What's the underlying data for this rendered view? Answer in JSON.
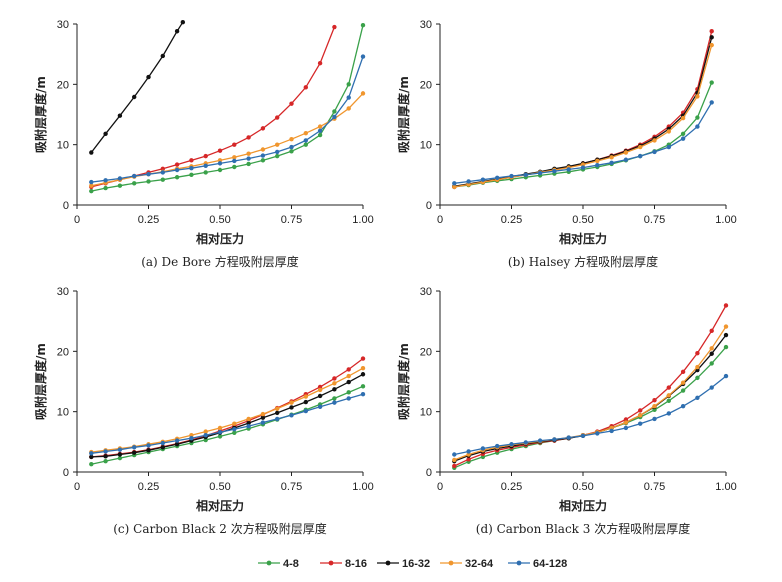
{
  "legend": [
    {
      "name": "4-8",
      "color": "#3aa14a"
    },
    {
      "name": "8-16",
      "color": "#d62728"
    },
    {
      "name": "16-32",
      "color": "#111111"
    },
    {
      "name": "32-64",
      "color": "#f0962e"
    },
    {
      "name": "64-128",
      "color": "#2f6fb0"
    }
  ],
  "chart_data": [
    {
      "type": "line",
      "title": "(a) De Bore 方程吸附层厚度",
      "xlabel": "相对压力",
      "ylabel": "吸附层厚度/m",
      "xlim": [
        0,
        1.0
      ],
      "ylim": [
        0,
        30
      ],
      "xticks": [
        "0",
        "0.25",
        "0.50",
        "0.75",
        "1.00"
      ],
      "yticks": [
        "0",
        "10",
        "20",
        "30"
      ],
      "series": [
        {
          "name": "4-8",
          "x": [
            0.05,
            0.1,
            0.15,
            0.2,
            0.25,
            0.3,
            0.35,
            0.4,
            0.45,
            0.5,
            0.55,
            0.6,
            0.65,
            0.7,
            0.75,
            0.8,
            0.85,
            0.9,
            0.95,
            1.0
          ],
          "values": [
            2.3,
            2.8,
            3.2,
            3.6,
            3.9,
            4.2,
            4.6,
            5.0,
            5.4,
            5.8,
            6.3,
            6.8,
            7.4,
            8.1,
            8.9,
            10.0,
            11.6,
            15.5,
            20.0,
            29.8
          ]
        },
        {
          "name": "8-16",
          "x": [
            0.05,
            0.1,
            0.15,
            0.2,
            0.25,
            0.3,
            0.35,
            0.4,
            0.45,
            0.5,
            0.55,
            0.6,
            0.65,
            0.7,
            0.75,
            0.8,
            0.85,
            0.9
          ],
          "values": [
            3.0,
            3.6,
            4.2,
            4.8,
            5.4,
            6.0,
            6.7,
            7.4,
            8.1,
            9.0,
            10.0,
            11.2,
            12.7,
            14.5,
            16.8,
            19.5,
            23.5,
            29.5
          ]
        },
        {
          "name": "16-32",
          "x": [
            0.05,
            0.1,
            0.15,
            0.2,
            0.25,
            0.3,
            0.35,
            0.37
          ],
          "values": [
            8.7,
            11.8,
            14.8,
            17.9,
            21.2,
            24.7,
            28.8,
            30.3
          ]
        },
        {
          "name": "32-64",
          "x": [
            0.05,
            0.1,
            0.15,
            0.2,
            0.25,
            0.3,
            0.35,
            0.4,
            0.45,
            0.5,
            0.55,
            0.6,
            0.65,
            0.7,
            0.75,
            0.8,
            0.85,
            0.9,
            0.95,
            1.0
          ],
          "values": [
            3.2,
            3.7,
            4.2,
            4.7,
            5.1,
            5.5,
            6.0,
            6.4,
            6.9,
            7.4,
            7.9,
            8.5,
            9.2,
            10.0,
            10.9,
            11.9,
            13.0,
            14.3,
            16.0,
            18.5
          ]
        },
        {
          "name": "64-128",
          "x": [
            0.05,
            0.1,
            0.15,
            0.2,
            0.25,
            0.3,
            0.35,
            0.4,
            0.45,
            0.5,
            0.55,
            0.6,
            0.65,
            0.7,
            0.75,
            0.8,
            0.85,
            0.9,
            0.95,
            1.0
          ],
          "values": [
            3.8,
            4.1,
            4.4,
            4.8,
            5.1,
            5.4,
            5.8,
            6.1,
            6.5,
            6.9,
            7.3,
            7.7,
            8.2,
            8.8,
            9.6,
            10.7,
            12.3,
            14.6,
            17.8,
            24.6
          ]
        }
      ]
    },
    {
      "type": "line",
      "title": "(b) Halsey 方程吸附层厚度",
      "xlabel": "相对压力",
      "ylabel": "吸附层厚度/m",
      "xlim": [
        0,
        1.0
      ],
      "ylim": [
        0,
        30
      ],
      "xticks": [
        "0",
        "0.25",
        "0.50",
        "0.75",
        "1.00"
      ],
      "yticks": [
        "0",
        "10",
        "20",
        "30"
      ],
      "series": [
        {
          "name": "4-8",
          "x": [
            0.05,
            0.1,
            0.15,
            0.2,
            0.25,
            0.3,
            0.35,
            0.4,
            0.45,
            0.5,
            0.55,
            0.6,
            0.65,
            0.7,
            0.75,
            0.8,
            0.85,
            0.9,
            0.95
          ],
          "values": [
            3.0,
            3.3,
            3.7,
            4.0,
            4.3,
            4.6,
            4.9,
            5.2,
            5.5,
            5.9,
            6.3,
            6.8,
            7.4,
            8.1,
            8.9,
            10.0,
            11.8,
            14.5,
            20.3
          ]
        },
        {
          "name": "8-16",
          "x": [
            0.05,
            0.1,
            0.15,
            0.2,
            0.25,
            0.3,
            0.35,
            0.4,
            0.45,
            0.5,
            0.55,
            0.6,
            0.65,
            0.7,
            0.75,
            0.8,
            0.85,
            0.9,
            0.95
          ],
          "values": [
            3.0,
            3.4,
            3.8,
            4.2,
            4.6,
            5.0,
            5.4,
            5.9,
            6.3,
            6.9,
            7.5,
            8.2,
            9.0,
            10.0,
            11.3,
            13.0,
            15.3,
            19.2,
            28.8
          ]
        },
        {
          "name": "16-32",
          "x": [
            0.05,
            0.1,
            0.15,
            0.2,
            0.25,
            0.3,
            0.35,
            0.4,
            0.45,
            0.5,
            0.55,
            0.6,
            0.65,
            0.7,
            0.75,
            0.8,
            0.85,
            0.9,
            0.95
          ],
          "values": [
            3.1,
            3.5,
            3.9,
            4.3,
            4.7,
            5.1,
            5.5,
            6.0,
            6.4,
            6.9,
            7.5,
            8.1,
            8.9,
            9.8,
            11.0,
            12.6,
            14.8,
            18.6,
            27.8
          ]
        },
        {
          "name": "32-64",
          "x": [
            0.05,
            0.1,
            0.15,
            0.2,
            0.25,
            0.3,
            0.35,
            0.4,
            0.45,
            0.5,
            0.55,
            0.6,
            0.65,
            0.7,
            0.75,
            0.8,
            0.85,
            0.9,
            0.95
          ],
          "values": [
            3.0,
            3.4,
            3.8,
            4.2,
            4.6,
            5.0,
            5.4,
            5.8,
            6.2,
            6.7,
            7.3,
            7.9,
            8.7,
            9.6,
            10.7,
            12.2,
            14.4,
            18.0,
            26.5
          ]
        },
        {
          "name": "64-128",
          "x": [
            0.05,
            0.1,
            0.15,
            0.2,
            0.25,
            0.3,
            0.35,
            0.4,
            0.45,
            0.5,
            0.55,
            0.6,
            0.65,
            0.7,
            0.75,
            0.8,
            0.85,
            0.9,
            0.95
          ],
          "values": [
            3.6,
            3.9,
            4.2,
            4.5,
            4.8,
            5.0,
            5.3,
            5.6,
            5.9,
            6.2,
            6.6,
            7.0,
            7.5,
            8.1,
            8.8,
            9.6,
            11.0,
            13.0,
            17.0
          ]
        }
      ]
    },
    {
      "type": "line",
      "title": "(c) Carbon Black 2 次方程吸附层厚度",
      "xlabel": "相对压力",
      "ylabel": "吸附层厚度/m",
      "xlim": [
        0,
        1.0
      ],
      "ylim": [
        0,
        30
      ],
      "xticks": [
        "0",
        "0.25",
        "0.50",
        "0.75",
        "1.00"
      ],
      "yticks": [
        "0",
        "10",
        "20",
        "30"
      ],
      "series": [
        {
          "name": "4-8",
          "x": [
            0.05,
            0.1,
            0.15,
            0.2,
            0.25,
            0.3,
            0.35,
            0.4,
            0.45,
            0.5,
            0.55,
            0.6,
            0.65,
            0.7,
            0.75,
            0.8,
            0.85,
            0.9,
            0.95,
            1.0
          ],
          "values": [
            1.3,
            1.8,
            2.3,
            2.8,
            3.3,
            3.8,
            4.3,
            4.8,
            5.3,
            5.9,
            6.5,
            7.2,
            7.9,
            8.7,
            9.5,
            10.3,
            11.2,
            12.2,
            13.2,
            14.2
          ]
        },
        {
          "name": "8-16",
          "x": [
            0.05,
            0.1,
            0.15,
            0.2,
            0.25,
            0.3,
            0.35,
            0.4,
            0.45,
            0.5,
            0.55,
            0.6,
            0.65,
            0.7,
            0.75,
            0.8,
            0.85,
            0.9,
            0.95,
            1.0
          ],
          "values": [
            2.5,
            2.7,
            3.0,
            3.3,
            3.7,
            4.2,
            4.7,
            5.3,
            6.0,
            6.8,
            7.6,
            8.5,
            9.5,
            10.6,
            11.7,
            12.9,
            14.1,
            15.5,
            17.0,
            18.8
          ]
        },
        {
          "name": "16-32",
          "x": [
            0.05,
            0.1,
            0.15,
            0.2,
            0.25,
            0.3,
            0.35,
            0.4,
            0.45,
            0.5,
            0.55,
            0.6,
            0.65,
            0.7,
            0.75,
            0.8,
            0.85,
            0.9,
            0.95,
            1.0
          ],
          "values": [
            2.5,
            2.6,
            2.9,
            3.2,
            3.6,
            4.1,
            4.6,
            5.2,
            5.8,
            6.5,
            7.3,
            8.1,
            9.0,
            9.8,
            10.7,
            11.6,
            12.6,
            13.7,
            14.9,
            16.2
          ]
        },
        {
          "name": "32-64",
          "x": [
            0.05,
            0.1,
            0.15,
            0.2,
            0.25,
            0.3,
            0.35,
            0.4,
            0.45,
            0.5,
            0.55,
            0.6,
            0.65,
            0.7,
            0.75,
            0.8,
            0.85,
            0.9,
            0.95,
            1.0
          ],
          "values": [
            3.3,
            3.6,
            3.9,
            4.2,
            4.6,
            5.0,
            5.5,
            6.1,
            6.7,
            7.3,
            8.0,
            8.8,
            9.6,
            10.5,
            11.5,
            12.5,
            13.6,
            14.7,
            15.9,
            17.2
          ]
        },
        {
          "name": "64-128",
          "x": [
            0.05,
            0.1,
            0.15,
            0.2,
            0.25,
            0.3,
            0.35,
            0.4,
            0.45,
            0.5,
            0.55,
            0.6,
            0.65,
            0.7,
            0.75,
            0.8,
            0.85,
            0.9,
            0.95,
            1.0
          ],
          "values": [
            3.1,
            3.4,
            3.7,
            4.1,
            4.4,
            4.8,
            5.2,
            5.6,
            6.1,
            6.6,
            7.1,
            7.6,
            8.2,
            8.8,
            9.4,
            10.1,
            10.8,
            11.5,
            12.2,
            12.9
          ]
        }
      ]
    },
    {
      "type": "line",
      "title": "(d) Carbon Black 3 次方程吸附层厚度",
      "xlabel": "相对压力",
      "ylabel": "吸附层厚度/m",
      "xlim": [
        0,
        1.0
      ],
      "ylim": [
        0,
        30
      ],
      "xticks": [
        "0",
        "0.25",
        "0.50",
        "0.75",
        "1.00"
      ],
      "yticks": [
        "0",
        "10",
        "20",
        "30"
      ],
      "series": [
        {
          "name": "4-8",
          "x": [
            0.05,
            0.1,
            0.15,
            0.2,
            0.25,
            0.3,
            0.35,
            0.4,
            0.45,
            0.5,
            0.55,
            0.6,
            0.65,
            0.7,
            0.75,
            0.8,
            0.85,
            0.9,
            0.95,
            1.0
          ],
          "values": [
            0.7,
            1.7,
            2.5,
            3.2,
            3.8,
            4.3,
            4.8,
            5.2,
            5.6,
            6.1,
            6.6,
            7.3,
            8.1,
            9.1,
            10.3,
            11.8,
            13.5,
            15.6,
            18.0,
            20.7
          ]
        },
        {
          "name": "8-16",
          "x": [
            0.05,
            0.1,
            0.15,
            0.2,
            0.25,
            0.3,
            0.35,
            0.4,
            0.45,
            0.5,
            0.55,
            0.6,
            0.65,
            0.7,
            0.75,
            0.8,
            0.85,
            0.9,
            0.95,
            1.0
          ],
          "values": [
            1.0,
            2.1,
            3.0,
            3.6,
            4.1,
            4.5,
            4.9,
            5.2,
            5.6,
            6.1,
            6.7,
            7.6,
            8.7,
            10.2,
            11.9,
            14.0,
            16.6,
            19.7,
            23.4,
            27.6
          ]
        },
        {
          "name": "16-32",
          "x": [
            0.05,
            0.1,
            0.15,
            0.2,
            0.25,
            0.3,
            0.35,
            0.4,
            0.45,
            0.5,
            0.55,
            0.6,
            0.65,
            0.7,
            0.75,
            0.8,
            0.85,
            0.9,
            0.95,
            1.0
          ],
          "values": [
            1.8,
            2.7,
            3.4,
            3.9,
            4.3,
            4.7,
            5.0,
            5.3,
            5.6,
            6.0,
            6.6,
            7.3,
            8.2,
            9.4,
            10.8,
            12.6,
            14.6,
            16.9,
            19.6,
            22.7
          ]
        },
        {
          "name": "32-64",
          "x": [
            0.05,
            0.1,
            0.15,
            0.2,
            0.25,
            0.3,
            0.35,
            0.4,
            0.45,
            0.5,
            0.55,
            0.6,
            0.65,
            0.7,
            0.75,
            0.8,
            0.85,
            0.9,
            0.95,
            1.0
          ],
          "values": [
            2.0,
            2.9,
            3.6,
            4.1,
            4.5,
            4.8,
            5.1,
            5.4,
            5.7,
            6.1,
            6.6,
            7.3,
            8.2,
            9.4,
            10.9,
            12.7,
            14.8,
            17.4,
            20.5,
            24.1
          ]
        },
        {
          "name": "64-128",
          "x": [
            0.05,
            0.1,
            0.15,
            0.2,
            0.25,
            0.3,
            0.35,
            0.4,
            0.45,
            0.5,
            0.55,
            0.6,
            0.65,
            0.7,
            0.75,
            0.8,
            0.85,
            0.9,
            0.95,
            1.0
          ],
          "values": [
            2.9,
            3.4,
            3.9,
            4.3,
            4.6,
            4.9,
            5.2,
            5.4,
            5.7,
            6.0,
            6.4,
            6.8,
            7.3,
            8.0,
            8.8,
            9.7,
            10.9,
            12.3,
            14.0,
            15.9
          ]
        }
      ]
    }
  ]
}
